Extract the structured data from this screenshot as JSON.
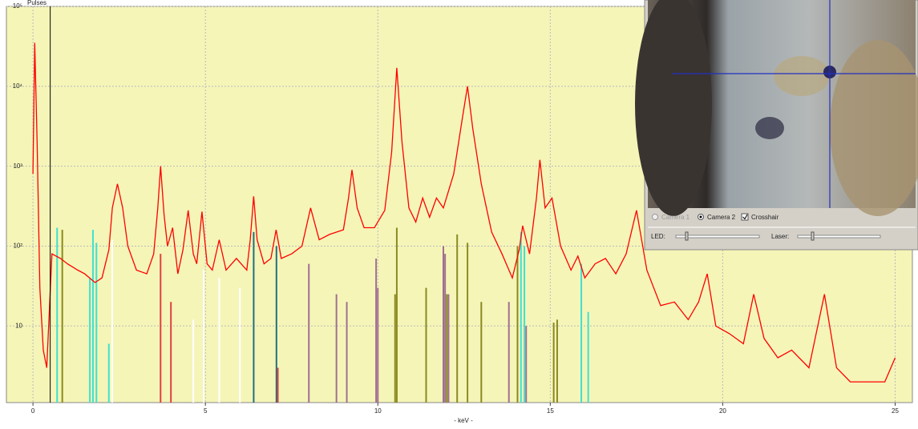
{
  "chart_data": {
    "type": "line",
    "y_label": "Pulses",
    "x_label": "- keV -",
    "xlim": [
      -0.77,
      25.5
    ],
    "xticks": [
      0,
      5,
      10,
      15,
      20,
      25
    ],
    "ylim": [
      1.1,
      100000
    ],
    "log_y": true,
    "grid": true,
    "yticks": [
      10,
      {
        "value": 100,
        "label": "10²"
      },
      {
        "value": 1000,
        "label": "10³"
      },
      {
        "value": 10000,
        "label": "10⁴"
      },
      {
        "value": 100000,
        "label": "10⁵"
      }
    ],
    "cursor": 0.5,
    "series": [
      {
        "type": "line",
        "color": "#ff0000",
        "x": [
          0.0,
          0.05,
          0.12,
          0.2,
          0.3,
          0.4,
          0.55,
          0.8,
          1.0,
          1.3,
          1.5,
          1.8,
          2.0,
          2.2,
          2.3,
          2.45,
          2.6,
          2.75,
          3.0,
          3.3,
          3.5,
          3.62,
          3.7,
          3.8,
          3.9,
          4.05,
          4.2,
          4.35,
          4.5,
          4.65,
          4.75,
          4.9,
          5.05,
          5.2,
          5.4,
          5.6,
          5.9,
          6.2,
          6.3,
          6.4,
          6.5,
          6.7,
          6.9,
          7.05,
          7.2,
          7.5,
          7.8,
          8.05,
          8.3,
          8.6,
          9.0,
          9.15,
          9.25,
          9.4,
          9.6,
          9.9,
          10.2,
          10.4,
          10.55,
          10.7,
          10.9,
          11.1,
          11.3,
          11.5,
          11.7,
          11.9,
          12.2,
          12.45,
          12.6,
          12.75,
          13.0,
          13.3,
          13.6,
          13.9,
          14.1,
          14.2,
          14.4,
          14.6,
          14.7,
          14.85,
          15.05,
          15.3,
          15.6,
          15.8,
          16.0,
          16.3,
          16.6,
          16.9,
          17.2,
          17.5,
          17.8,
          18.2,
          18.6,
          19.0,
          19.3,
          19.55,
          19.8,
          20.2,
          20.6,
          20.9,
          21.2,
          21.6,
          22.0,
          22.5,
          22.95,
          23.3,
          23.7,
          24.2,
          24.7,
          25.0
        ],
        "values": [
          800,
          35000,
          2000,
          30,
          5,
          3,
          80,
          70,
          60,
          50,
          45,
          35,
          40,
          90,
          300,
          600,
          300,
          100,
          50,
          45,
          80,
          300,
          1000,
          250,
          100,
          170,
          45,
          90,
          280,
          80,
          60,
          270,
          60,
          50,
          120,
          50,
          70,
          50,
          120,
          420,
          120,
          60,
          70,
          160,
          70,
          80,
          100,
          300,
          120,
          140,
          160,
          400,
          900,
          300,
          170,
          170,
          280,
          1500,
          17000,
          2000,
          300,
          200,
          400,
          230,
          400,
          300,
          800,
          4000,
          10000,
          3000,
          600,
          150,
          80,
          40,
          90,
          180,
          80,
          400,
          1200,
          300,
          400,
          100,
          50,
          75,
          40,
          60,
          70,
          45,
          80,
          280,
          50,
          18,
          20,
          12,
          20,
          45,
          10,
          8,
          6,
          25,
          7,
          4,
          5,
          3,
          25,
          3,
          2,
          2,
          2,
          4
        ]
      },
      {
        "type": "stem",
        "color": "#40e0d0",
        "x": [
          0.7,
          1.65,
          1.74,
          1.84,
          2.2,
          14.15,
          14.25,
          15.9,
          16.1
        ],
        "values": [
          170,
          40,
          160,
          110,
          6,
          150,
          100,
          60,
          15
        ]
      },
      {
        "type": "stem",
        "color": "#8a8a20",
        "x": [
          0.85,
          10.5,
          10.55,
          11.4,
          12.0,
          12.3,
          12.6,
          13.0,
          14.05,
          15.1,
          15.2
        ],
        "values": [
          160,
          25,
          170,
          30,
          25,
          140,
          110,
          20,
          100,
          11,
          12
        ]
      },
      {
        "type": "stem",
        "color": "#a07090",
        "x": [
          8.0,
          8.8,
          9.1,
          9.95,
          10.0,
          11.9,
          11.95,
          12.05,
          13.8,
          14.3
        ],
        "values": [
          60,
          25,
          20,
          70,
          30,
          100,
          80,
          25,
          20,
          10
        ]
      },
      {
        "type": "stem",
        "color": "#ffffff",
        "x": [
          2.3,
          4.65,
          4.95,
          5.4,
          6.0
        ],
        "values": [
          120,
          12,
          50,
          40,
          30
        ]
      },
      {
        "type": "stem",
        "color": "#207080",
        "x": [
          6.4,
          7.06
        ],
        "values": [
          150,
          100
        ]
      },
      {
        "type": "stem",
        "color": "#e04040",
        "x": [
          3.7,
          4.0,
          7.1
        ],
        "values": [
          80,
          20,
          3
        ]
      }
    ]
  },
  "inset": {
    "camera1": "Camera 1",
    "camera2": "Camera 2",
    "crosshair": "Crosshair",
    "led": "LED:",
    "laser": "Laser:"
  }
}
